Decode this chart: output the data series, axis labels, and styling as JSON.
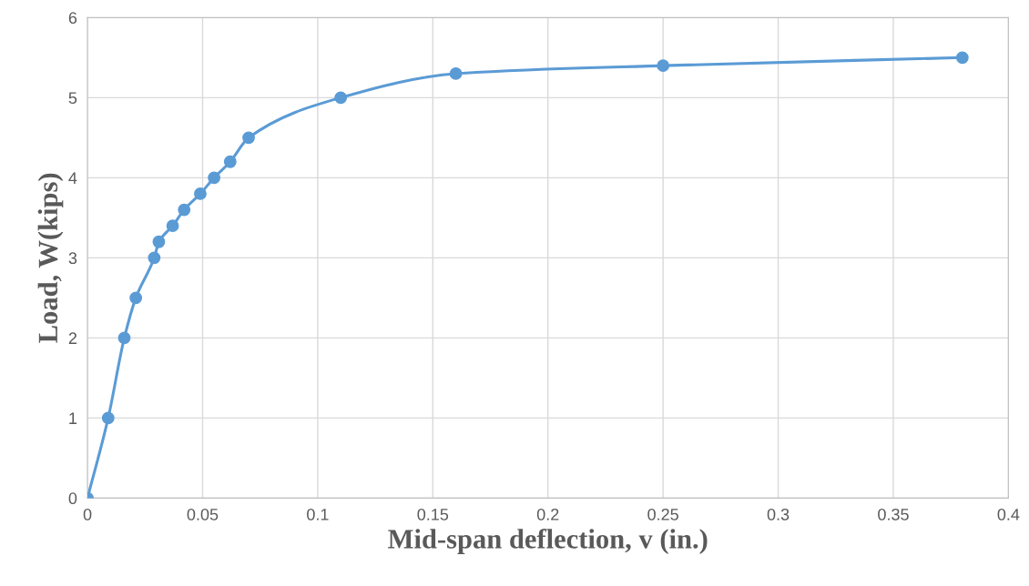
{
  "chart_data": {
    "type": "line",
    "xlabel": "Mid-span deflection, v (in.)",
    "ylabel": "Load, W(kips)",
    "x": [
      0,
      0.009,
      0.016,
      0.021,
      0.029,
      0.031,
      0.037,
      0.042,
      0.049,
      0.055,
      0.062,
      0.07,
      0.11,
      0.16,
      0.25,
      0.38
    ],
    "series": [
      {
        "color": "#5b9bd5",
        "values": [
          0,
          1,
          2,
          2.5,
          3,
          3.2,
          3.4,
          3.6,
          3.8,
          4,
          4.2,
          4.5,
          5,
          5.3,
          5.4,
          5.5
        ]
      }
    ],
    "xlim": [
      0,
      0.4
    ],
    "xticks": [
      0,
      0.05,
      0.1,
      0.15,
      0.2,
      0.25,
      0.3,
      0.35,
      0.4
    ],
    "ylim": [
      0,
      6
    ],
    "yticks": [
      0,
      1,
      2,
      3,
      4,
      5,
      6
    ],
    "grid": true,
    "marker": "circle",
    "line_style": "solid",
    "legend": false
  }
}
